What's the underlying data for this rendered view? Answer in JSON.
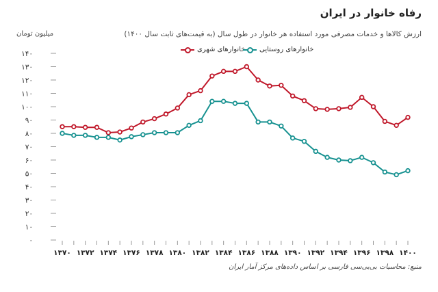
{
  "chart_data": {
    "type": "line",
    "title": "رفاه خانوار در ایران",
    "subtitle": "ارزش کالاها و خدمات مصرفی مورد استفاده هر خانوار در طول سال (به قیمت‌های ثابت سال ۱۴۰۰)",
    "ylabel": "میلیون تومان",
    "ylim": [
      0,
      140
    ],
    "y_ticks": [
      0,
      10,
      20,
      30,
      40,
      50,
      60,
      70,
      80,
      90,
      100,
      110,
      120,
      130,
      140
    ],
    "y_tick_labels": [
      "۰",
      "۱۰",
      "۲۰",
      "۳۰",
      "۴۰",
      "۵۰",
      "۶۰",
      "۷۰",
      "۸۰",
      "۹۰",
      "۱۰۰",
      "۱۱۰",
      "۱۲۰",
      "۱۳۰",
      "۱۴۰"
    ],
    "x": [
      1370,
      1371,
      1372,
      1373,
      1374,
      1375,
      1376,
      1377,
      1378,
      1379,
      1380,
      1381,
      1382,
      1383,
      1384,
      1385,
      1386,
      1387,
      1388,
      1389,
      1390,
      1391,
      1392,
      1393,
      1394,
      1395,
      1396,
      1397,
      1398,
      1399,
      1400
    ],
    "x_ticks": [
      1370,
      1372,
      1374,
      1376,
      1378,
      1380,
      1382,
      1384,
      1386,
      1388,
      1390,
      1392,
      1394,
      1396,
      1398,
      1400
    ],
    "x_tick_labels": [
      "۱۳۷۰",
      "۱۳۷۲",
      "۱۳۷۴",
      "۱۳۷۶",
      "۱۳۷۸",
      "۱۳۸۰",
      "۱۳۸۲",
      "۱۳۸۴",
      "۱۳۸۶",
      "۱۳۸۸",
      "۱۳۹۰",
      "۱۳۹۲",
      "۱۳۹۴",
      "۱۳۹۶",
      "۱۳۹۸",
      "۱۴۰۰"
    ],
    "series": [
      {
        "name": "خانوارهای شهری",
        "color": "#c0182a",
        "values": [
          85,
          85,
          84.5,
          84.5,
          80.5,
          81,
          84,
          88.5,
          91,
          94.5,
          99,
          109,
          112,
          123,
          126.5,
          126.5,
          130,
          120,
          115.5,
          116,
          108,
          104.5,
          98.5,
          98,
          98.5,
          99.5,
          107,
          100,
          89,
          86,
          92
        ]
      },
      {
        "name": "خانوارهای روستایی",
        "color": "#169190",
        "values": [
          80,
          78.5,
          78.5,
          77,
          77,
          75,
          77.5,
          79,
          80.5,
          80.5,
          80.5,
          86,
          89.5,
          104,
          104,
          102.5,
          102.5,
          88.5,
          88.5,
          85.5,
          76.5,
          74,
          66.5,
          62,
          60,
          59.5,
          62,
          58,
          51,
          49,
          52
        ]
      }
    ],
    "grid": false,
    "legend": "top-left",
    "source": "منبع: محاسبات بی‌بی‌سی فارسی بر اساس داده‌های مرکز آمار ایران"
  }
}
